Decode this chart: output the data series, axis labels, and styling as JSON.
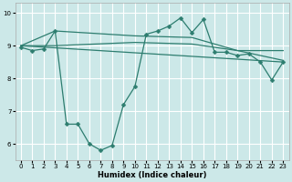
{
  "xlabel": "Humidex (Indice chaleur)",
  "bg_color": "#cce8e8",
  "line_color": "#2d7d6f",
  "grid_color": "#ffffff",
  "xlim": [
    -0.5,
    23.5
  ],
  "ylim": [
    5.5,
    10.3
  ],
  "yticks": [
    6,
    7,
    8,
    9,
    10
  ],
  "xticks": [
    0,
    1,
    2,
    3,
    4,
    5,
    6,
    7,
    8,
    9,
    10,
    11,
    12,
    13,
    14,
    15,
    16,
    17,
    18,
    19,
    20,
    21,
    22,
    23
  ],
  "series": [
    {
      "x": [
        0,
        1,
        2,
        3,
        4,
        5,
        6,
        7,
        8,
        9,
        10,
        11,
        12,
        13,
        14,
        15,
        16,
        17,
        18,
        19,
        20,
        21,
        22,
        23
      ],
      "y": [
        8.95,
        8.85,
        8.9,
        9.45,
        6.6,
        6.6,
        6.0,
        5.8,
        5.95,
        7.2,
        7.75,
        9.35,
        9.45,
        9.6,
        9.85,
        9.4,
        9.8,
        8.8,
        8.8,
        8.7,
        8.75,
        8.5,
        7.95,
        8.5
      ],
      "marker": "D",
      "markersize": 2.5,
      "linewidth": 0.9
    },
    {
      "x": [
        0,
        23
      ],
      "y": [
        9.0,
        8.5
      ],
      "marker": null,
      "linewidth": 0.9
    },
    {
      "x": [
        0,
        3,
        10,
        15,
        19,
        23
      ],
      "y": [
        9.0,
        9.0,
        9.1,
        9.05,
        8.85,
        8.55
      ],
      "marker": null,
      "linewidth": 0.9
    },
    {
      "x": [
        0,
        3,
        10,
        15,
        19,
        23
      ],
      "y": [
        9.0,
        9.45,
        9.3,
        9.25,
        8.85,
        8.85
      ],
      "marker": null,
      "linewidth": 0.9
    }
  ]
}
